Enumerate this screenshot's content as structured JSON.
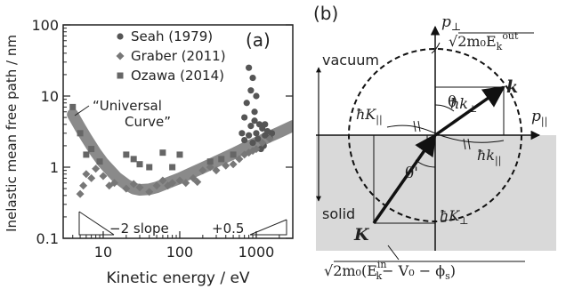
{
  "panel_a": {
    "label": "(a)",
    "ylabel": "Inelastic mean free path / nm",
    "xlabel": "Kinetic energy / eV",
    "curve_label_line1": "“Universal",
    "curve_label_line2": "Curve”",
    "slope_neg_label": "−2 slope",
    "slope_pos_label": "+0.5",
    "chart_data": {
      "type": "scatter",
      "xscale": "log",
      "yscale": "log",
      "xlim": [
        3,
        3000
      ],
      "ylim": [
        0.1,
        100
      ],
      "x_ticks": [
        "10",
        "100",
        "1000"
      ],
      "y_ticks": [
        "0.1",
        "1",
        "10",
        "100"
      ],
      "legend_placement": "top-right",
      "series": [
        {
          "name": "Seah (1979)",
          "marker": "circle",
          "color": "#555555",
          "points": [
            [
              800,
              25
            ],
            [
              900,
              18
            ],
            [
              850,
              12
            ],
            [
              1000,
              10
            ],
            [
              750,
              8
            ],
            [
              950,
              6
            ],
            [
              700,
              5
            ],
            [
              1100,
              4
            ],
            [
              1200,
              3.5
            ],
            [
              650,
              3
            ],
            [
              1300,
              2.8
            ],
            [
              1050,
              2.5
            ],
            [
              900,
              2.2
            ],
            [
              1500,
              2.6
            ],
            [
              1250,
              2
            ],
            [
              800,
              2.8
            ],
            [
              1400,
              3.2
            ],
            [
              1150,
              1.8
            ],
            [
              700,
              2.4
            ],
            [
              1000,
              3
            ],
            [
              950,
              4.5
            ],
            [
              1300,
              4
            ],
            [
              850,
              3.8
            ],
            [
              1600,
              3
            ]
          ]
        },
        {
          "name": "Graber (2011)",
          "marker": "diamond",
          "color": "#777777",
          "points": [
            [
              5,
              0.42
            ],
            [
              5.5,
              0.55
            ],
            [
              6,
              0.8
            ],
            [
              7,
              0.7
            ],
            [
              8,
              0.95
            ],
            [
              10,
              0.75
            ],
            [
              12,
              0.55
            ],
            [
              14,
              0.6
            ],
            [
              20,
              0.5
            ],
            [
              25,
              0.58
            ],
            [
              30,
              0.52
            ],
            [
              40,
              0.45
            ],
            [
              50,
              0.55
            ],
            [
              60,
              0.65
            ],
            [
              70,
              0.55
            ],
            [
              80,
              0.6
            ],
            [
              100,
              0.65
            ],
            [
              120,
              0.6
            ],
            [
              150,
              0.7
            ],
            [
              170,
              0.62
            ],
            [
              200,
              0.9
            ],
            [
              250,
              1.0
            ],
            [
              300,
              0.9
            ],
            [
              400,
              1.05
            ],
            [
              500,
              1.1
            ],
            [
              600,
              1.3
            ],
            [
              700,
              1.5
            ],
            [
              800,
              1.6
            ],
            [
              900,
              1.7
            ],
            [
              1000,
              1.8
            ],
            [
              1200,
              2.2
            ],
            [
              1500,
              2.5
            ]
          ]
        },
        {
          "name": "Ozawa (2014)",
          "marker": "square",
          "color": "#666666",
          "points": [
            [
              4,
              7
            ],
            [
              5,
              3
            ],
            [
              6,
              1.5
            ],
            [
              7,
              1.8
            ],
            [
              9,
              1.2
            ],
            [
              20,
              1.5
            ],
            [
              30,
              1.1
            ],
            [
              40,
              1.0
            ],
            [
              25,
              1.3
            ],
            [
              60,
              1.6
            ],
            [
              80,
              1.0
            ],
            [
              100,
              1.5
            ],
            [
              250,
              1.2
            ],
            [
              350,
              1.3
            ],
            [
              500,
              1.5
            ]
          ]
        },
        {
          "name": "Universal Curve",
          "marker": "band",
          "color": "#8a8a8a",
          "points": [
            [
              4,
              5.5
            ],
            [
              5,
              3.6
            ],
            [
              6,
              2.6
            ],
            [
              8,
              1.6
            ],
            [
              10,
              1.15
            ],
            [
              15,
              0.72
            ],
            [
              20,
              0.57
            ],
            [
              25,
              0.5
            ],
            [
              30,
              0.48
            ],
            [
              40,
              0.49
            ],
            [
              50,
              0.52
            ],
            [
              70,
              0.6
            ],
            [
              100,
              0.7
            ],
            [
              150,
              0.85
            ],
            [
              200,
              0.98
            ],
            [
              300,
              1.2
            ],
            [
              500,
              1.55
            ],
            [
              700,
              1.85
            ],
            [
              1000,
              2.2
            ],
            [
              1500,
              2.7
            ],
            [
              2000,
              3.1
            ],
            [
              3000,
              3.8
            ]
          ]
        }
      ]
    }
  },
  "panel_b": {
    "label": "(b)",
    "p_perp": "p",
    "p_perp_sub": "⊥",
    "p_par": "p",
    "p_par_sub": "||",
    "vacuum": "vacuum",
    "solid": "solid",
    "sqrt_top": "√2m₀E",
    "sqrt_top_sub": "k",
    "sqrt_top_sup": "out",
    "sqrt_bottom": "√2m₀(E",
    "sqrt_bottom_sup": "in",
    "sqrt_bottom_sub": "k",
    "sqrt_bottom_tail": "− V₀ − ϕ",
    "sqrt_bottom_tail_sub": "s",
    "sqrt_bottom_close": ")",
    "hk_perp": "ħk",
    "hk_perp_sub": "⊥",
    "hk_par": "ħk",
    "hk_par_sub": "||",
    "hK_par": "ħK",
    "hK_par_sub": "||",
    "hK_perp": "ħK",
    "hK_perp_sub": "⊥",
    "k_vec": "k",
    "K_vec": "K",
    "theta": "θ",
    "theta_prime": "θ'",
    "shade_color": "#d9d9d9"
  }
}
